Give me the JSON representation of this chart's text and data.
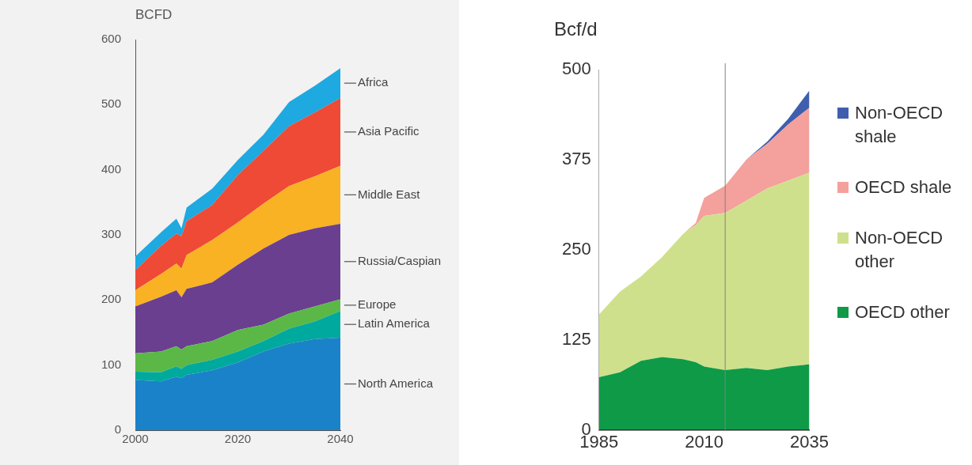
{
  "chart_data": [
    {
      "type": "area",
      "ylabel": "BCFD",
      "stacked": true,
      "x": [
        2000,
        2005,
        2008,
        2009,
        2010,
        2015,
        2020,
        2025,
        2030,
        2035,
        2040
      ],
      "xlim": [
        2000,
        2040
      ],
      "xticks": [
        2000,
        2020,
        2040
      ],
      "ylim": [
        0,
        600
      ],
      "yticks": [
        0,
        100,
        200,
        300,
        400,
        500,
        600
      ],
      "series": [
        {
          "name": "North America",
          "color": "#1a82c8",
          "values": [
            77,
            75,
            82,
            80,
            85,
            92,
            104,
            121,
            133,
            140,
            142
          ]
        },
        {
          "name": "Latin America",
          "color": "#00a99d",
          "values": [
            13,
            14,
            16,
            14,
            15,
            16,
            17,
            16,
            23,
            27,
            41
          ]
        },
        {
          "name": "Europe",
          "color": "#5bb847",
          "values": [
            28,
            32,
            31,
            30,
            29,
            29,
            33,
            25,
            23,
            23,
            18
          ]
        },
        {
          "name": "Russia/Caspian",
          "color": "#6a3f8f",
          "values": [
            72,
            84,
            86,
            80,
            88,
            90,
            100,
            117,
            121,
            120,
            116
          ]
        },
        {
          "name": "Middle East",
          "color": "#f9b223",
          "values": [
            25,
            35,
            41,
            44,
            52,
            65,
            65,
            69,
            75,
            80,
            89
          ]
        },
        {
          "name": "Asia Pacific",
          "color": "#ee4a36",
          "values": [
            31,
            43,
            46,
            50,
            52,
            54,
            73,
            81,
            92,
            98,
            104
          ]
        },
        {
          "name": "Africa",
          "color": "#1ea9e1",
          "values": [
            21,
            21,
            23,
            12,
            21,
            25,
            23,
            25,
            37,
            41,
            46
          ]
        }
      ]
    },
    {
      "type": "area",
      "ylabel": "Bcf/d",
      "stacked": true,
      "legend": "right",
      "x": [
        1985,
        1990,
        1995,
        2000,
        2005,
        2008,
        2010,
        2015,
        2020,
        2025,
        2030,
        2035
      ],
      "xlim": [
        1985,
        2035
      ],
      "xticks": [
        1985,
        2010,
        2035
      ],
      "ylim": [
        0,
        500
      ],
      "yticks": [
        0,
        125,
        250,
        375,
        500
      ],
      "ref_lines": [
        {
          "axis": "x",
          "value": 2015,
          "color": "#808080"
        }
      ],
      "series": [
        {
          "name": "OECD other",
          "color": "#0f9a48",
          "values": [
            73,
            80,
            96,
            101,
            98,
            94,
            88,
            83,
            86,
            83,
            88,
            91
          ]
        },
        {
          "name": "Non-OECD other",
          "color": "#cfe08c",
          "values": [
            87,
            112,
            117,
            139,
            174,
            190,
            209,
            218,
            232,
            252,
            258,
            266
          ]
        },
        {
          "name": "OECD shale",
          "color": "#f4a09c",
          "values": [
            0,
            0,
            0,
            0,
            0,
            3,
            25,
            38,
            57,
            62,
            78,
            90
          ]
        },
        {
          "name": "Non-OECD shale",
          "color": "#3f5fae",
          "values": [
            0,
            0,
            0,
            0,
            0,
            0,
            0,
            0,
            0,
            3,
            8,
            24
          ]
        }
      ]
    }
  ]
}
